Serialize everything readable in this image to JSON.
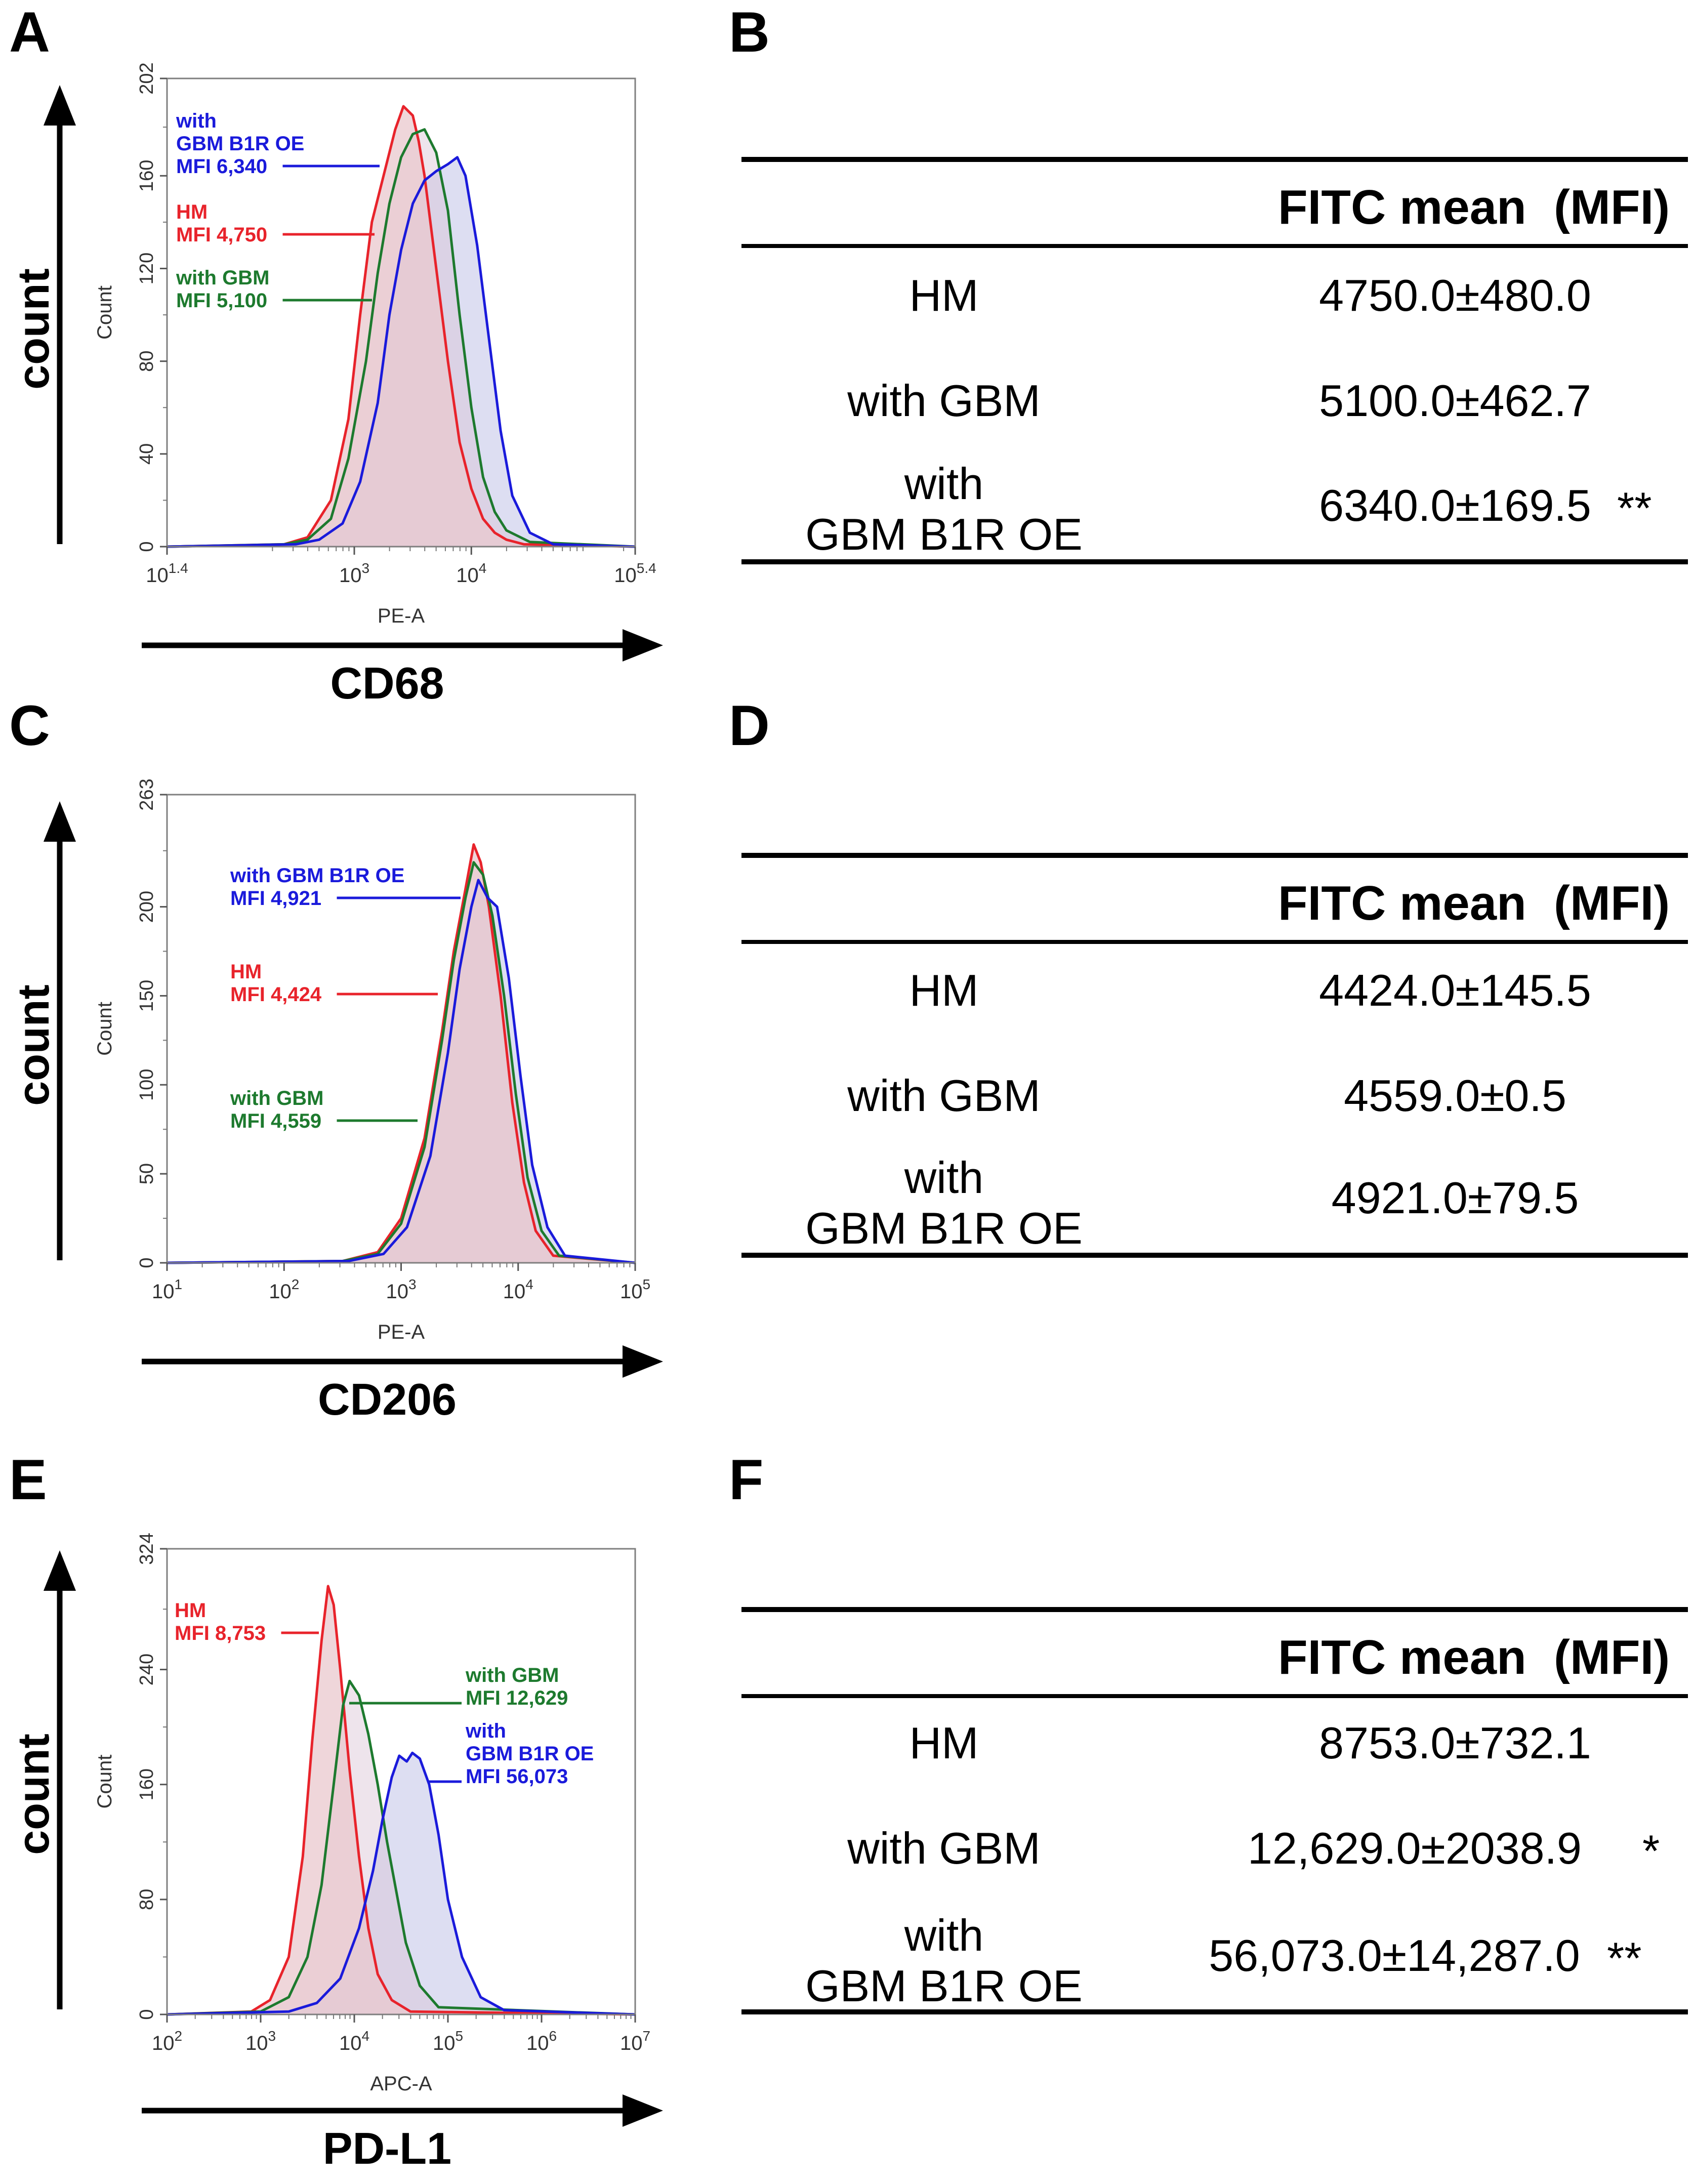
{
  "panels": [
    {
      "letter": "A",
      "y_axis_big_label": "count",
      "x_axis_big_label": "CD68",
      "chart_data": {
        "type": "histogram-overlay",
        "xlabel": "PE-A",
        "ylabel": "Count",
        "x_scale": "log10",
        "xlim_log": [
          1.4,
          5.4
        ],
        "ylim": [
          0,
          202
        ],
        "x_ticks": [
          {
            "base": "10",
            "exp": "1.4",
            "log": 1.4
          },
          {
            "base": "10",
            "exp": "3",
            "log": 3
          },
          {
            "base": "10",
            "exp": "4",
            "log": 4
          },
          {
            "base": "10",
            "exp": "5.4",
            "log": 5.4
          }
        ],
        "y_ticks": [
          "0",
          "40",
          "80",
          "120",
          "160",
          "202"
        ],
        "y_tick_values": [
          0,
          40,
          80,
          120,
          160,
          202
        ],
        "series": [
          {
            "name": "HM",
            "color": "#e8232b",
            "fill": "#e9c8cd",
            "fill_opacity": 0.75,
            "x_log": [
              1.4,
              2.4,
              2.6,
              2.8,
              2.95,
              3.05,
              3.15,
              3.25,
              3.35,
              3.42,
              3.5,
              3.55,
              3.6,
              3.7,
              3.8,
              3.9,
              4.0,
              4.1,
              4.2,
              4.3,
              4.45,
              5.4
            ],
            "y": [
              0,
              1,
              4,
              20,
              55,
              100,
              140,
              160,
              180,
              190,
              186,
              175,
              160,
              120,
              80,
              45,
              25,
              12,
              6,
              3,
              1,
              0
            ]
          },
          {
            "name": "with GBM",
            "color": "#1d7a2e",
            "fill": "#d9c4d4",
            "fill_opacity": 0.45,
            "x_log": [
              1.4,
              2.4,
              2.6,
              2.8,
              2.95,
              3.1,
              3.2,
              3.3,
              3.4,
              3.5,
              3.6,
              3.7,
              3.8,
              3.9,
              4.0,
              4.1,
              4.2,
              4.3,
              4.5,
              5.4
            ],
            "y": [
              0,
              1,
              3,
              12,
              38,
              80,
              118,
              148,
              168,
              178,
              180,
              170,
              145,
              100,
              60,
              30,
              15,
              7,
              2,
              0
            ]
          },
          {
            "name": "with GBM B1R OE",
            "color": "#1a1adb",
            "fill": "#c6c8ea",
            "fill_opacity": 0.6,
            "x_log": [
              1.4,
              2.5,
              2.7,
              2.9,
              3.05,
              3.2,
              3.3,
              3.4,
              3.5,
              3.6,
              3.7,
              3.8,
              3.88,
              3.95,
              4.05,
              4.15,
              4.25,
              4.35,
              4.5,
              4.7,
              5.4
            ],
            "y": [
              0,
              1,
              3,
              10,
              28,
              62,
              100,
              128,
              148,
              158,
              162,
              165,
              168,
              160,
              130,
              90,
              50,
              22,
              6,
              1,
              0
            ]
          }
        ],
        "annotations": [
          {
            "lines": [
              "with",
              "GBM B1R OE",
              "MFI 6,340"
            ],
            "color": "#1a1adb"
          },
          {
            "lines": [
              "HM",
              "MFI 4,750"
            ],
            "color": "#e8232b"
          },
          {
            "lines": [
              "with GBM",
              "MFI 5,100"
            ],
            "color": "#1d7a2e"
          }
        ]
      }
    },
    {
      "letter": "C",
      "y_axis_big_label": "count",
      "x_axis_big_label": "CD206",
      "chart_data": {
        "type": "histogram-overlay",
        "xlabel": "PE-A",
        "ylabel": "Count",
        "x_scale": "log10",
        "xlim_log": [
          1,
          5
        ],
        "ylim": [
          0,
          263
        ],
        "x_ticks": [
          {
            "base": "10",
            "exp": "1",
            "log": 1
          },
          {
            "base": "10",
            "exp": "2",
            "log": 2
          },
          {
            "base": "10",
            "exp": "3",
            "log": 3
          },
          {
            "base": "10",
            "exp": "4",
            "log": 4
          },
          {
            "base": "10",
            "exp": "5",
            "log": 5
          }
        ],
        "y_ticks": [
          "0",
          "50",
          "100",
          "150",
          "200",
          "263"
        ],
        "y_tick_values": [
          0,
          50,
          100,
          150,
          200,
          263
        ],
        "series": [
          {
            "name": "HM",
            "color": "#e8232b",
            "fill": "#e9c8cd",
            "fill_opacity": 0.75,
            "x_log": [
              1,
              2.5,
              2.8,
              3.0,
              3.2,
              3.35,
              3.45,
              3.55,
              3.62,
              3.68,
              3.75,
              3.85,
              3.95,
              4.05,
              4.15,
              4.3,
              5
            ],
            "y": [
              0,
              1,
              6,
              25,
              70,
              130,
              175,
              210,
              235,
              225,
              200,
              150,
              90,
              45,
              18,
              4,
              0
            ]
          },
          {
            "name": "with GBM",
            "color": "#1d7a2e",
            "fill": "#d9c4d4",
            "fill_opacity": 0.45,
            "x_log": [
              1,
              2.5,
              2.8,
              3.0,
              3.2,
              3.35,
              3.45,
              3.55,
              3.62,
              3.7,
              3.78,
              3.88,
              3.98,
              4.08,
              4.2,
              4.35,
              5
            ],
            "y": [
              0,
              1,
              5,
              22,
              65,
              125,
              170,
              205,
              225,
              218,
              195,
              150,
              95,
              48,
              18,
              4,
              0
            ]
          },
          {
            "name": "with GBM B1R OE",
            "color": "#1a1adb",
            "fill": "#c6c8ea",
            "fill_opacity": 0.6,
            "x_log": [
              1,
              2.55,
              2.85,
              3.05,
              3.25,
              3.4,
              3.5,
              3.6,
              3.66,
              3.74,
              3.82,
              3.92,
              4.02,
              4.12,
              4.25,
              4.4,
              5
            ],
            "y": [
              0,
              1,
              5,
              20,
              60,
              118,
              165,
              200,
              215,
              205,
              200,
              160,
              105,
              55,
              20,
              4,
              0
            ]
          }
        ],
        "annotations": [
          {
            "lines": [
              "with GBM B1R OE",
              "MFI 4,921"
            ],
            "color": "#1a1adb"
          },
          {
            "lines": [
              "HM",
              "MFI 4,424"
            ],
            "color": "#e8232b"
          },
          {
            "lines": [
              "with GBM",
              "MFI 4,559"
            ],
            "color": "#1d7a2e"
          }
        ]
      }
    },
    {
      "letter": "E",
      "y_axis_big_label": "count",
      "x_axis_big_label": "PD-L1",
      "chart_data": {
        "type": "histogram-overlay",
        "xlabel": "APC-A",
        "ylabel": "Count",
        "x_scale": "log10",
        "xlim_log": [
          2,
          7
        ],
        "ylim": [
          0,
          324
        ],
        "x_ticks": [
          {
            "base": "10",
            "exp": "2",
            "log": 2
          },
          {
            "base": "10",
            "exp": "3",
            "log": 3
          },
          {
            "base": "10",
            "exp": "4",
            "log": 4
          },
          {
            "base": "10",
            "exp": "5",
            "log": 5
          },
          {
            "base": "10",
            "exp": "6",
            "log": 6
          },
          {
            "base": "10",
            "exp": "7",
            "log": 7
          }
        ],
        "y_ticks": [
          "0",
          "80",
          "160",
          "240",
          "324"
        ],
        "y_tick_values": [
          0,
          80,
          160,
          240,
          324
        ],
        "series": [
          {
            "name": "HM",
            "color": "#e8232b",
            "fill": "#e9c8cd",
            "fill_opacity": 0.75,
            "x_log": [
              2,
              2.9,
              3.1,
              3.3,
              3.45,
              3.55,
              3.65,
              3.72,
              3.78,
              3.85,
              3.95,
              4.05,
              4.15,
              4.25,
              4.4,
              4.6,
              7
            ],
            "y": [
              0,
              2,
              10,
              40,
              110,
              190,
              260,
              298,
              285,
              240,
              170,
              110,
              60,
              28,
              10,
              2,
              0
            ]
          },
          {
            "name": "with GBM",
            "color": "#1d7a2e",
            "fill": "#d9c4d4",
            "fill_opacity": 0.45,
            "x_log": [
              2,
              3.0,
              3.3,
              3.5,
              3.65,
              3.78,
              3.88,
              3.95,
              4.05,
              4.15,
              4.25,
              4.35,
              4.45,
              4.55,
              4.7,
              4.9,
              7
            ],
            "y": [
              0,
              2,
              12,
              40,
              90,
              160,
              215,
              232,
              222,
              195,
              160,
              120,
              85,
              50,
              20,
              5,
              0
            ]
          },
          {
            "name": "with GBM B1R OE",
            "color": "#1a1adb",
            "fill": "#c6c8ea",
            "fill_opacity": 0.6,
            "x_log": [
              2,
              3.3,
              3.6,
              3.85,
              4.05,
              4.2,
              4.3,
              4.4,
              4.48,
              4.56,
              4.62,
              4.7,
              4.8,
              4.9,
              5.0,
              5.15,
              5.35,
              5.6,
              7
            ],
            "y": [
              0,
              2,
              8,
              25,
              60,
              100,
              135,
              165,
              180,
              176,
              182,
              178,
              160,
              125,
              80,
              40,
              12,
              3,
              0
            ]
          }
        ],
        "annotations": [
          {
            "lines": [
              "HM",
              "MFI 8,753"
            ],
            "color": "#e8232b"
          },
          {
            "lines": [
              "with GBM",
              "MFI 12,629"
            ],
            "color": "#1d7a2e"
          },
          {
            "lines": [
              "with",
              "GBM B1R OE",
              "MFI 56,073"
            ],
            "color": "#1a1adb"
          }
        ]
      }
    }
  ],
  "tables": [
    {
      "letter": "B",
      "header": {
        "col1": "FITC mean",
        "col2": "(MFI)"
      },
      "rows": [
        {
          "label_lines": [
            "HM"
          ],
          "value": "4750.0±480.0",
          "sig": ""
        },
        {
          "label_lines": [
            "with GBM"
          ],
          "value": "5100.0±462.7",
          "sig": ""
        },
        {
          "label_lines": [
            "with",
            "GBM B1R OE"
          ],
          "value": "6340.0±169.5",
          "sig": "**"
        }
      ]
    },
    {
      "letter": "D",
      "header": {
        "col1": "FITC mean",
        "col2": "(MFI)"
      },
      "rows": [
        {
          "label_lines": [
            "HM"
          ],
          "value": "4424.0±145.5",
          "sig": ""
        },
        {
          "label_lines": [
            "with GBM"
          ],
          "value": "4559.0±0.5",
          "sig": ""
        },
        {
          "label_lines": [
            "with",
            "GBM B1R OE"
          ],
          "value": "4921.0±79.5",
          "sig": ""
        }
      ]
    },
    {
      "letter": "F",
      "header": {
        "col1": "FITC mean",
        "col2": "(MFI)"
      },
      "rows": [
        {
          "label_lines": [
            "HM"
          ],
          "value": "8753.0±732.1",
          "sig": ""
        },
        {
          "label_lines": [
            "with GBM"
          ],
          "value": "12,629.0±2038.9",
          "sig": "*"
        },
        {
          "label_lines": [
            "with",
            "GBM B1R OE"
          ],
          "value": "56,073.0±14,287.0",
          "sig": "**"
        }
      ]
    }
  ]
}
